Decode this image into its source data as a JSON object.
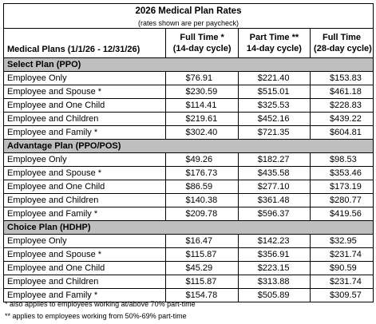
{
  "title": "2026 Medical Plan Rates",
  "subtitle": "(rates shown are per paycheck)",
  "header": {
    "plans_label": "Medical Plans (1/1/26 - 12/31/26)",
    "columns": [
      {
        "line1": "Full Time *",
        "line2": "(14-day cycle)"
      },
      {
        "line1": "Part Time **",
        "line2": "14-day cycle)"
      },
      {
        "line1": "Full Time",
        "line2": "(28-day cycle)"
      }
    ]
  },
  "sections": [
    {
      "name": "Select Plan (PPO)",
      "rows": [
        {
          "label": "Employee Only",
          "values": [
            "$76.91",
            "$221.40",
            "$153.83"
          ]
        },
        {
          "label": "Employee and Spouse *",
          "values": [
            "$230.59",
            "$515.01",
            "$461.18"
          ]
        },
        {
          "label": "Employee and One Child",
          "values": [
            "$114.41",
            "$325.53",
            "$228.83"
          ]
        },
        {
          "label": "Employee and Children",
          "values": [
            "$219.61",
            "$452.16",
            "$439.22"
          ]
        },
        {
          "label": "Employee and Family *",
          "values": [
            "$302.40",
            "$721.35",
            "$604.81"
          ]
        }
      ]
    },
    {
      "name": "Advantage Plan (PPO/POS)",
      "rows": [
        {
          "label": "Employee Only",
          "values": [
            "$49.26",
            "$182.27",
            "$98.53"
          ]
        },
        {
          "label": "Employee and Spouse *",
          "values": [
            "$176.73",
            "$435.58",
            "$353.46"
          ]
        },
        {
          "label": "Employee and One Child",
          "values": [
            "$86.59",
            "$277.10",
            "$173.19"
          ]
        },
        {
          "label": "Employee and Children",
          "values": [
            "$140.38",
            "$361.48",
            "$280.77"
          ]
        },
        {
          "label": "Employee and Family *",
          "values": [
            "$209.78",
            "$596.37",
            "$419.56"
          ]
        }
      ]
    },
    {
      "name": "Choice Plan (HDHP)",
      "rows": [
        {
          "label": "Employee Only",
          "values": [
            "$16.47",
            "$142.23",
            "$32.95"
          ]
        },
        {
          "label": "Employee and Spouse *",
          "values": [
            "$115.87",
            "$356.91",
            "$231.74"
          ]
        },
        {
          "label": "Employee and One Child",
          "values": [
            "$45.29",
            "$223.15",
            "$90.59"
          ]
        },
        {
          "label": "Employee and Children",
          "values": [
            "$115.87",
            "$313.88",
            "$231.74"
          ]
        },
        {
          "label": "Employee and Family *",
          "values": [
            "$154.78",
            "$505.89",
            "$309.57"
          ]
        }
      ]
    }
  ],
  "footnotes": [
    "* also applies to employees working at/above 70% part-time",
    "** applies to employees working from 50%-69% part-time"
  ]
}
